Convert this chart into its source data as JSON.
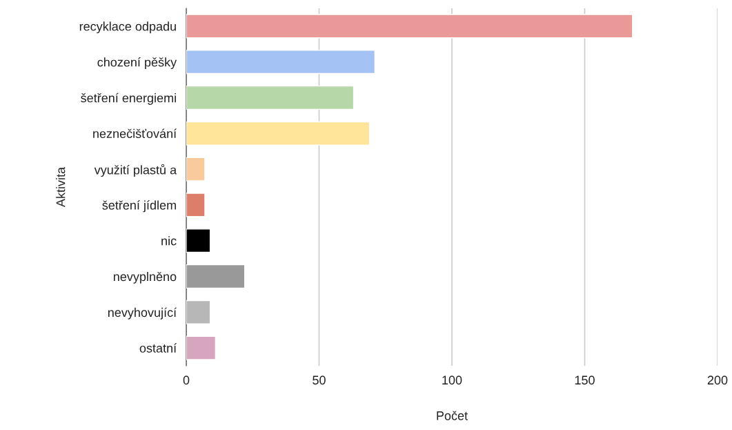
{
  "chart_data": {
    "type": "bar",
    "orientation": "horizontal",
    "xlabel": "Počet",
    "ylabel": "Aktivita",
    "categories": [
      "recyklace odpadu",
      "chození pěšky",
      "šetření energiemi",
      "neznečišťování",
      "využití plastů a",
      "šetření jídlem",
      "nic",
      "nevyplněno",
      "nevyhovující",
      "ostatní"
    ],
    "values": [
      168,
      71,
      63,
      69,
      7,
      7,
      9,
      22,
      9,
      11
    ],
    "colors": [
      "#ea9999",
      "#a4c2f4",
      "#b6d7a8",
      "#ffe599",
      "#f9cb9c",
      "#dd7e6b",
      "#000000",
      "#999999",
      "#b7b7b7",
      "#d5a6bd"
    ],
    "xlim": [
      0,
      200
    ],
    "xticks": [
      0,
      50,
      100,
      150,
      200
    ],
    "grid": "x",
    "legend": false
  }
}
